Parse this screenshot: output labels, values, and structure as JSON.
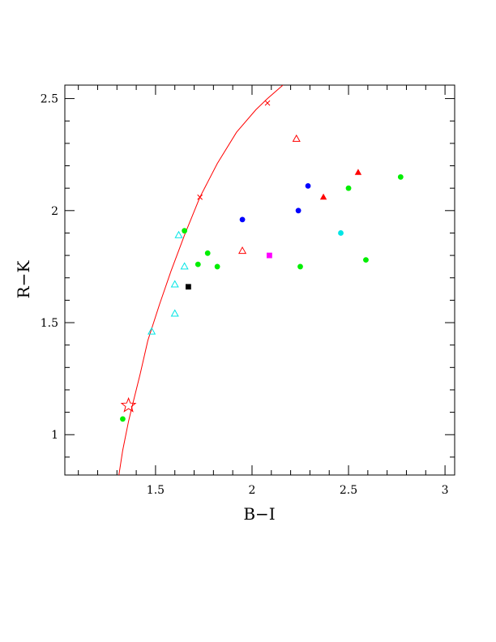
{
  "chart_data": {
    "type": "scatter",
    "title": "",
    "xlabel": "B−I",
    "ylabel": "R−K",
    "xlim": [
      1.03,
      3.05
    ],
    "ylim": [
      0.82,
      2.56
    ],
    "xticks": [
      {
        "value": 1.5,
        "label": "1.5"
      },
      {
        "value": 2,
        "label": "2"
      },
      {
        "value": 2.5,
        "label": "2.5"
      },
      {
        "value": 3,
        "label": "3"
      }
    ],
    "yticks": [
      {
        "value": 1,
        "label": "1"
      },
      {
        "value": 1.5,
        "label": "1.5"
      },
      {
        "value": 2,
        "label": "2"
      },
      {
        "value": 2.5,
        "label": "2.5"
      }
    ],
    "x_minor_step": 0.1,
    "y_minor_step": 0.1,
    "grid": false,
    "curve": {
      "color": "#ff0000",
      "points": [
        [
          1.31,
          0.82
        ],
        [
          1.33,
          0.93
        ],
        [
          1.36,
          1.06
        ],
        [
          1.38,
          1.13
        ],
        [
          1.42,
          1.27
        ],
        [
          1.46,
          1.42
        ],
        [
          1.52,
          1.58
        ],
        [
          1.58,
          1.73
        ],
        [
          1.65,
          1.89
        ],
        [
          1.73,
          2.06
        ],
        [
          1.82,
          2.21
        ],
        [
          1.92,
          2.35
        ],
        [
          2.02,
          2.45
        ],
        [
          2.08,
          2.5
        ],
        [
          2.16,
          2.56
        ]
      ],
      "markers": [
        [
          1.73,
          2.06
        ],
        [
          2.08,
          2.48
        ]
      ]
    },
    "star": {
      "x": 1.36,
      "y": 1.13,
      "color": "#ff0000"
    },
    "series": [
      {
        "marker": "circle",
        "color": "#00ee00",
        "points": [
          [
            1.33,
            1.07
          ],
          [
            1.65,
            1.91
          ],
          [
            1.72,
            1.76
          ],
          [
            1.77,
            1.81
          ],
          [
            1.82,
            1.75
          ],
          [
            2.25,
            1.75
          ],
          [
            2.5,
            2.1
          ],
          [
            2.59,
            1.78
          ],
          [
            2.77,
            2.15
          ]
        ]
      },
      {
        "marker": "open-triangle",
        "color": "#00e5e5",
        "points": [
          [
            1.48,
            1.46
          ],
          [
            1.6,
            1.54
          ],
          [
            1.6,
            1.67
          ],
          [
            1.62,
            1.89
          ],
          [
            1.65,
            1.75
          ]
        ]
      },
      {
        "marker": "open-triangle",
        "color": "#ff0000",
        "points": [
          [
            1.95,
            1.82
          ],
          [
            2.23,
            2.32
          ]
        ]
      },
      {
        "marker": "filled-triangle",
        "color": "#ff0000",
        "points": [
          [
            2.37,
            2.06
          ],
          [
            2.55,
            2.17
          ]
        ]
      },
      {
        "marker": "circle",
        "color": "#0000ff",
        "points": [
          [
            1.95,
            1.96
          ],
          [
            2.24,
            2.0
          ],
          [
            2.29,
            2.11
          ]
        ]
      },
      {
        "marker": "circle",
        "color": "#00e5e5",
        "points": [
          [
            2.46,
            1.9
          ]
        ]
      },
      {
        "marker": "square",
        "color": "#ff00ff",
        "points": [
          [
            2.09,
            1.8
          ]
        ]
      },
      {
        "marker": "square",
        "color": "#000000",
        "points": [
          [
            1.67,
            1.66
          ]
        ]
      }
    ]
  }
}
